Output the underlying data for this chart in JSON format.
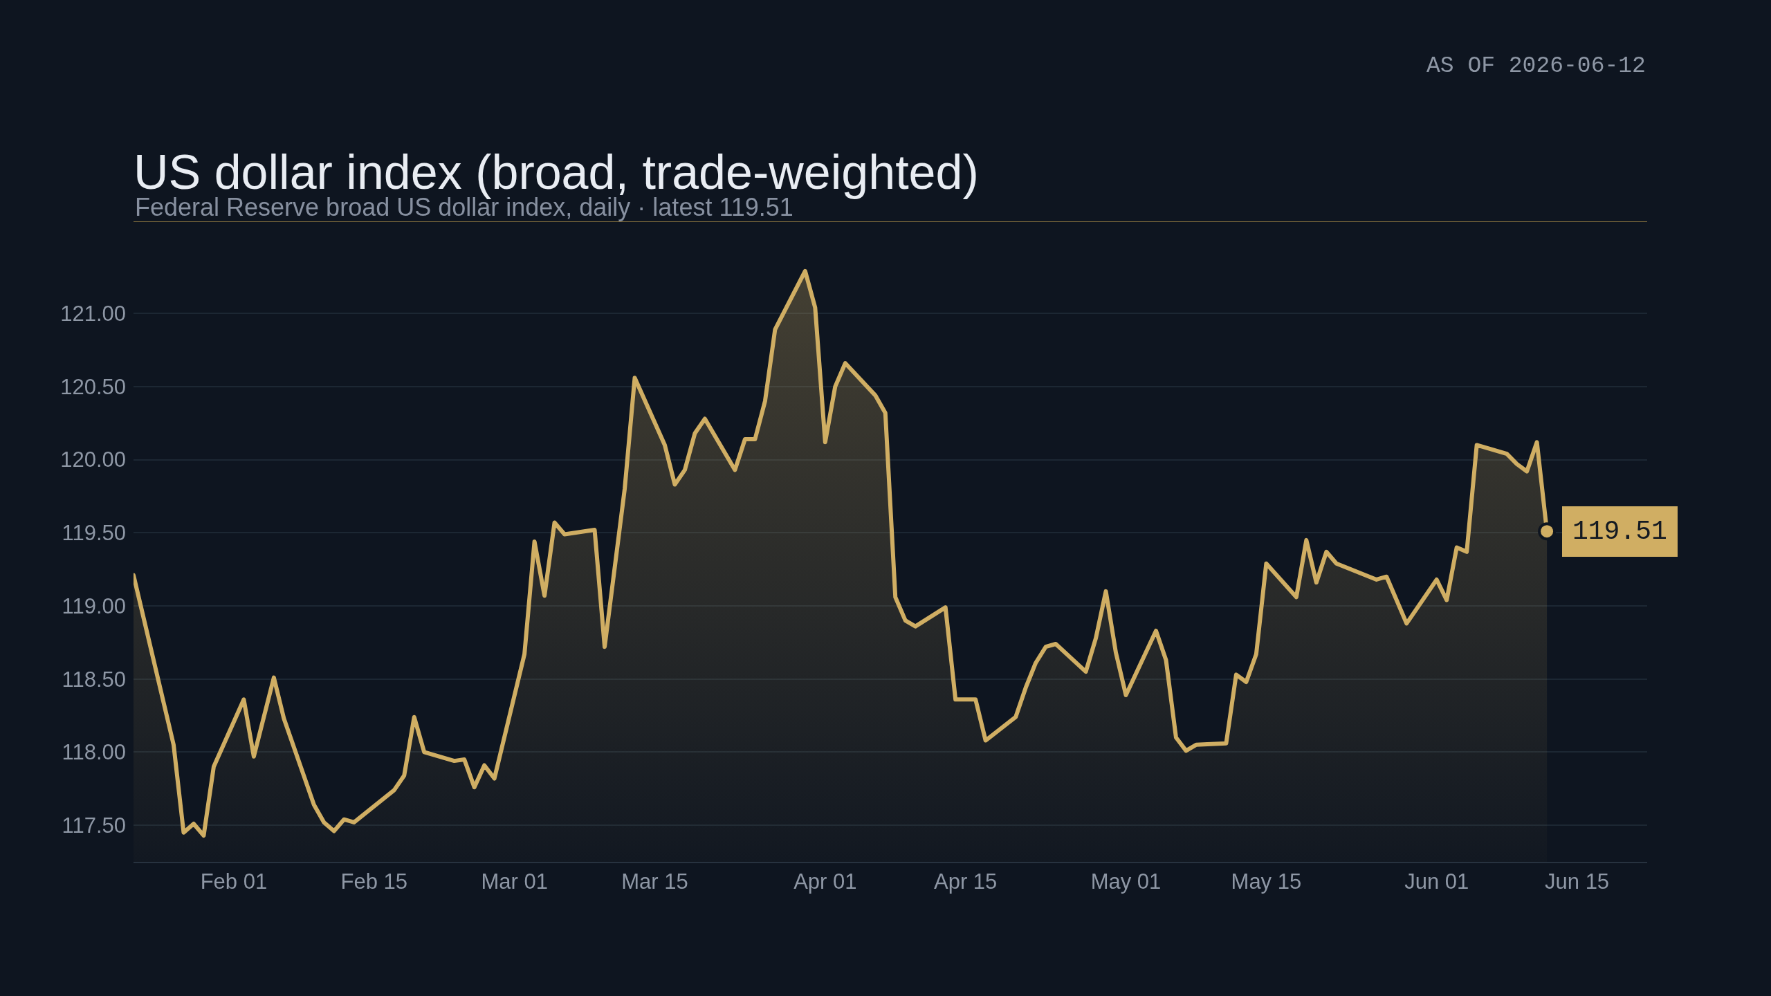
{
  "chart_data": {
    "type": "area",
    "title": "US dollar index (broad, trade-weighted)",
    "subtitle": "Federal Reserve broad US dollar index, daily · latest 119.51",
    "annotations": [
      "AS OF 2026-06-12",
      {
        "text": "119.51",
        "x": "2026-06-12",
        "y": 119.51
      }
    ],
    "x": [
      "2026-01-22",
      "2026-01-26",
      "2026-01-27",
      "2026-01-28",
      "2026-01-29",
      "2026-01-30",
      "2026-02-02",
      "2026-02-03",
      "2026-02-05",
      "2026-02-06",
      "2026-02-09",
      "2026-02-10",
      "2026-02-11",
      "2026-02-12",
      "2026-02-13",
      "2026-02-17",
      "2026-02-18",
      "2026-02-19",
      "2026-02-20",
      "2026-02-23",
      "2026-02-24",
      "2026-02-25",
      "2026-02-26",
      "2026-02-27",
      "2026-03-02",
      "2026-03-03",
      "2026-03-04",
      "2026-03-05",
      "2026-03-06",
      "2026-03-09",
      "2026-03-10",
      "2026-03-12",
      "2026-03-13",
      "2026-03-16",
      "2026-03-17",
      "2026-03-18",
      "2026-03-19",
      "2026-03-20",
      "2026-03-23",
      "2026-03-24",
      "2026-03-25",
      "2026-03-26",
      "2026-03-27",
      "2026-03-30",
      "2026-03-31",
      "2026-04-01",
      "2026-04-02",
      "2026-04-03",
      "2026-04-06",
      "2026-04-07",
      "2026-04-08",
      "2026-04-09",
      "2026-04-10",
      "2026-04-13",
      "2026-04-14",
      "2026-04-16",
      "2026-04-17",
      "2026-04-20",
      "2026-04-21",
      "2026-04-22",
      "2026-04-23",
      "2026-04-24",
      "2026-04-27",
      "2026-04-28",
      "2026-04-29",
      "2026-04-30",
      "2026-05-01",
      "2026-05-04",
      "2026-05-05",
      "2026-05-06",
      "2026-05-07",
      "2026-05-08",
      "2026-05-11",
      "2026-05-12",
      "2026-05-13",
      "2026-05-14",
      "2026-05-15",
      "2026-05-18",
      "2026-05-19",
      "2026-05-20",
      "2026-05-21",
      "2026-05-22",
      "2026-05-26",
      "2026-05-27",
      "2026-05-29",
      "2026-06-01",
      "2026-06-02",
      "2026-06-03",
      "2026-06-04",
      "2026-06-05",
      "2026-06-08",
      "2026-06-09",
      "2026-06-10",
      "2026-06-11",
      "2026-06-12"
    ],
    "series": [
      {
        "color": "#d0ae63",
        "values": [
          119.21,
          118.05,
          117.45,
          117.51,
          117.43,
          117.9,
          118.36,
          117.97,
          118.51,
          118.23,
          117.64,
          117.52,
          117.46,
          117.54,
          117.52,
          117.74,
          117.84,
          118.24,
          118.0,
          117.94,
          117.95,
          117.76,
          117.91,
          117.82,
          118.67,
          119.44,
          119.07,
          119.57,
          119.49,
          119.52,
          118.72,
          119.8,
          120.56,
          120.1,
          119.83,
          119.93,
          120.18,
          120.28,
          119.93,
          120.14,
          120.14,
          120.4,
          120.89,
          121.29,
          121.04,
          120.12,
          120.5,
          120.66,
          120.44,
          120.32,
          119.06,
          118.9,
          118.86,
          118.99,
          118.36,
          118.36,
          118.08,
          118.24,
          118.44,
          118.61,
          118.72,
          118.74,
          118.55,
          118.78,
          119.1,
          118.68,
          118.39,
          118.83,
          118.63,
          118.1,
          118.01,
          118.05,
          118.06,
          118.53,
          118.48,
          118.67,
          119.29,
          119.06,
          119.45,
          119.16,
          119.37,
          119.29,
          119.18,
          119.2,
          118.88,
          119.18,
          119.04,
          119.4,
          119.37,
          120.1,
          120.04,
          119.97,
          119.92,
          120.12,
          119.51
        ]
      }
    ],
    "xlim": [
      "2026-01-22",
      "2026-06-22"
    ],
    "xticks": [
      {
        "value": "2026-02-01",
        "label": "Feb 01"
      },
      {
        "value": "2026-02-15",
        "label": "Feb 15"
      },
      {
        "value": "2026-03-01",
        "label": "Mar 01"
      },
      {
        "value": "2026-03-15",
        "label": "Mar 15"
      },
      {
        "value": "2026-04-01",
        "label": "Apr 01"
      },
      {
        "value": "2026-04-15",
        "label": "Apr 15"
      },
      {
        "value": "2026-05-01",
        "label": "May 01"
      },
      {
        "value": "2026-05-15",
        "label": "May 15"
      },
      {
        "value": "2026-06-01",
        "label": "Jun 01"
      },
      {
        "value": "2026-06-15",
        "label": "Jun 15"
      }
    ],
    "ylim": [
      117.25,
      121.63
    ],
    "yticks": [
      {
        "value": 117.5,
        "label": "117.50"
      },
      {
        "value": 118,
        "label": "118.00"
      },
      {
        "value": 118.5,
        "label": "118.50"
      },
      {
        "value": 119,
        "label": "119.00"
      },
      {
        "value": 119.5,
        "label": "119.50"
      },
      {
        "value": 120,
        "label": "120.00"
      },
      {
        "value": 120.5,
        "label": "120.50"
      },
      {
        "value": 121,
        "label": "121.00"
      }
    ],
    "grid": "y"
  }
}
